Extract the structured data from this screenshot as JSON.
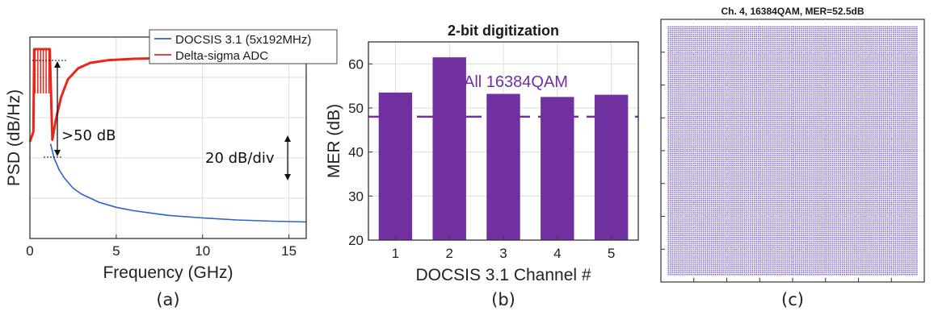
{
  "chart_data": [
    {
      "type": "line",
      "panel": "(a)",
      "xlabel": "Frequency (GHz)",
      "ylabel": "PSD (dB/Hz)",
      "xlim": [
        0,
        16
      ],
      "xticks": [
        0,
        5,
        10,
        15
      ],
      "ylim": [
        -5,
        5
      ],
      "yticks_labeled": false,
      "grid": true,
      "legend_position": "top-right",
      "series": [
        {
          "name": "DOCSIS 3.1 (5x192MHz)",
          "color": "#2e62c4",
          "x": [
            1.2,
            1.4,
            1.7,
            2.0,
            2.5,
            3.0,
            4.0,
            5.0,
            6.0,
            8.0,
            10.0,
            12.0,
            14.0,
            16.0
          ],
          "y": [
            -0.3,
            -1.0,
            -1.6,
            -2.0,
            -2.5,
            -2.8,
            -3.2,
            -3.45,
            -3.62,
            -3.85,
            -3.98,
            -4.08,
            -4.14,
            -4.18
          ]
        },
        {
          "name": "Delta-sigma ADC",
          "color": "#e8261c",
          "x": [
            0.0,
            0.2,
            0.25,
            1.15,
            1.3,
            1.5,
            1.8,
            2.2,
            2.8,
            3.5,
            4.5,
            6.0,
            8.0,
            10.0,
            12.0,
            14.0,
            16.0
          ],
          "y": [
            -0.2,
            0.3,
            4.4,
            4.4,
            -0.1,
            0.9,
            2.0,
            2.9,
            3.45,
            3.72,
            3.85,
            3.92,
            3.96,
            3.98,
            4.0,
            4.02,
            4.04
          ]
        }
      ],
      "annotations": [
        ">50 dB",
        "20 dB/div"
      ]
    },
    {
      "type": "bar",
      "panel": "(b)",
      "title": "2-bit digitization",
      "xlabel": "DOCSIS 3.1 Channel #",
      "ylabel": "MER (dB)",
      "categories": [
        "1",
        "2",
        "3",
        "4",
        "5"
      ],
      "values": [
        53.5,
        61.5,
        53.2,
        52.5,
        53.0
      ],
      "ylim": [
        20,
        65
      ],
      "yticks": [
        20,
        30,
        40,
        50,
        60
      ],
      "bar_color": "#7030a0",
      "grid": true,
      "threshold": {
        "value": 48,
        "label": "All 16384QAM",
        "style": "dashed"
      }
    },
    {
      "type": "scatter",
      "panel": "(c)",
      "title": "Ch. 4, 16384QAM, MER=52.5dB",
      "points_per_axis": 128,
      "point_color": "#7b5fc4",
      "grid": true
    }
  ]
}
